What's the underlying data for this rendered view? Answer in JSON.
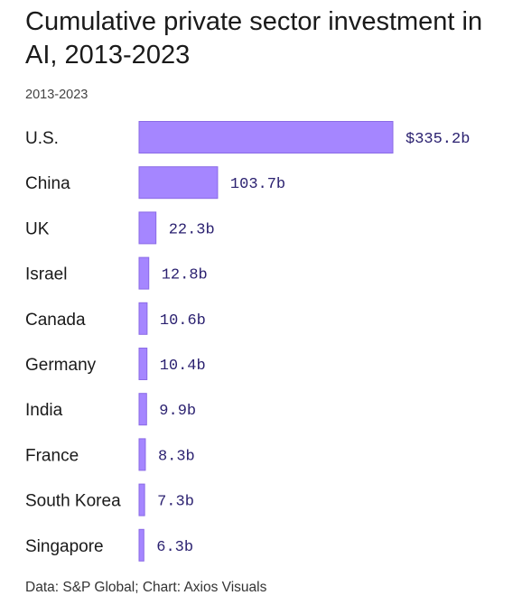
{
  "chart_data": {
    "type": "bar",
    "orientation": "horizontal",
    "title": "Cumulative private sector investment in AI, 2013-2023",
    "subtitle": "2013-2023",
    "categories": [
      "U.S.",
      "China",
      "UK",
      "Israel",
      "Canada",
      "Germany",
      "India",
      "France",
      "South Korea",
      "Singapore"
    ],
    "values": [
      335.2,
      103.7,
      22.3,
      12.8,
      10.6,
      10.4,
      9.9,
      8.3,
      7.3,
      6.3
    ],
    "value_labels": [
      "$335.2b",
      "103.7b",
      "22.3b",
      "12.8b",
      "10.6b",
      "10.4b",
      "9.9b",
      "8.3b",
      "7.3b",
      "6.3b"
    ],
    "bar_color": "#a586ff",
    "label_color": "#2b2170",
    "grid": false,
    "legend": "none"
  },
  "footer": {
    "source": "Data: S&P Global; Chart: Axios Visuals"
  }
}
